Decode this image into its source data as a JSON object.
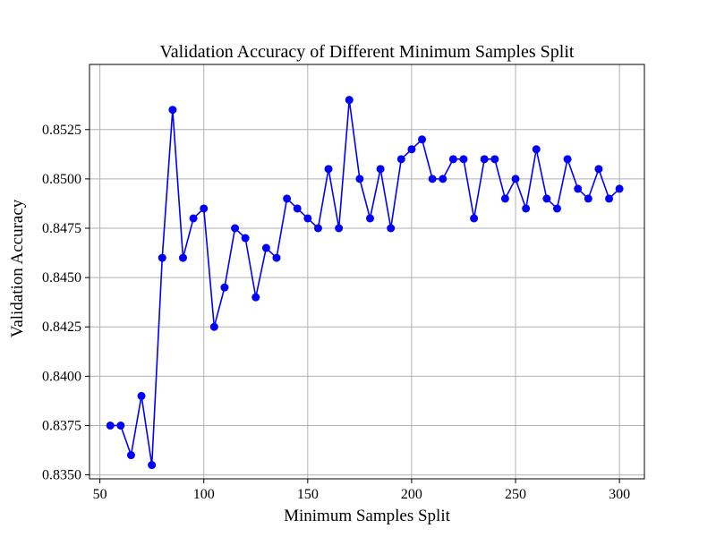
{
  "chart_data": {
    "type": "line",
    "title": "Validation Accuracy of Different Minimum Samples Split",
    "xlabel": "Minimum Samples Split",
    "ylabel": "Validation Accuracy",
    "xlim": [
      45,
      312
    ],
    "ylim": [
      0.8348,
      0.8558
    ],
    "xticks": [
      50,
      100,
      150,
      200,
      250,
      300
    ],
    "yticks": [
      0.835,
      0.8375,
      0.84,
      0.8425,
      0.845,
      0.8475,
      0.85,
      0.8525
    ],
    "xtick_labels": [
      "50",
      "100",
      "150",
      "200",
      "250",
      "300"
    ],
    "ytick_labels": [
      "0.8350",
      "0.8375",
      "0.8400",
      "0.8425",
      "0.8450",
      "0.8475",
      "0.8500",
      "0.8525"
    ],
    "grid": true,
    "color": "#0000ff",
    "marker": "circle",
    "series": [
      {
        "x": [
          55,
          60,
          65,
          70,
          75,
          80,
          85,
          90,
          95,
          100,
          105,
          110,
          115,
          120,
          125,
          130,
          135,
          140,
          145,
          150,
          155,
          160,
          165,
          170,
          175,
          180,
          185,
          190,
          195,
          200,
          205,
          210,
          215,
          220,
          225,
          230,
          235,
          240,
          245,
          250,
          255,
          260,
          265,
          270,
          275,
          280,
          285,
          290,
          295,
          300
        ],
        "y": [
          0.8375,
          0.8375,
          0.836,
          0.839,
          0.8355,
          0.846,
          0.8535,
          0.846,
          0.848,
          0.8485,
          0.8425,
          0.8445,
          0.8475,
          0.847,
          0.844,
          0.8465,
          0.846,
          0.849,
          0.8485,
          0.848,
          0.8475,
          0.8505,
          0.8475,
          0.854,
          0.85,
          0.848,
          0.8505,
          0.8475,
          0.851,
          0.8515,
          0.852,
          0.85,
          0.85,
          0.851,
          0.851,
          0.848,
          0.851,
          0.851,
          0.849,
          0.85,
          0.8485,
          0.8515,
          0.849,
          0.8485,
          0.851,
          0.8495,
          0.849,
          0.8505,
          0.849,
          0.8495
        ]
      }
    ]
  }
}
